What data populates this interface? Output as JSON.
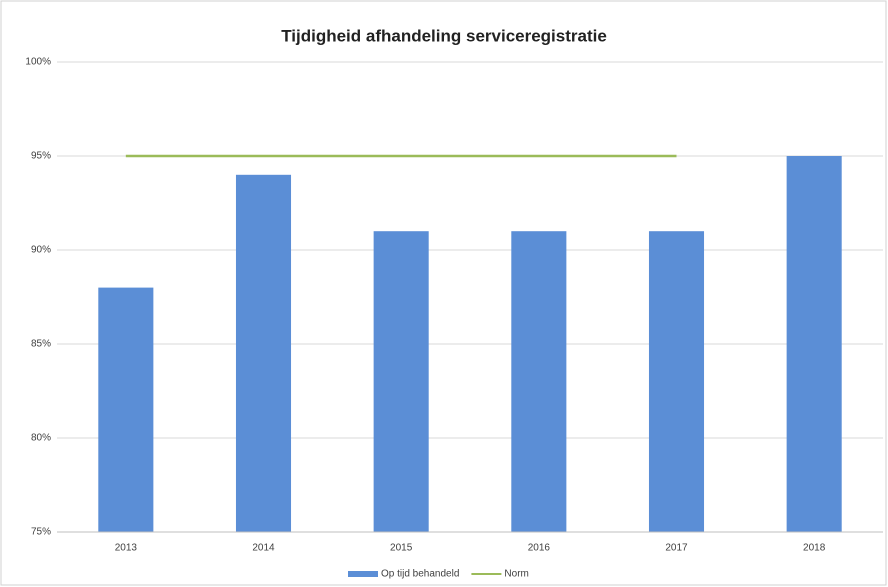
{
  "chart_data": {
    "type": "bar",
    "title": "Tijdigheid afhandeling serviceregistratie",
    "categories": [
      "2013",
      "2014",
      "2015",
      "2016",
      "2017",
      "2018"
    ],
    "series": [
      {
        "name": "Op tijd behandeld",
        "type": "bar",
        "color": "#5b8ed6",
        "values": [
          88,
          94,
          91,
          91,
          91,
          95
        ]
      },
      {
        "name": "Norm",
        "type": "line",
        "color": "#9bbb59",
        "values": [
          95,
          95,
          95,
          95,
          95,
          null
        ]
      }
    ],
    "ylim": [
      75,
      100
    ],
    "yticks": [
      {
        "value": 75,
        "label": "75%"
      },
      {
        "value": 80,
        "label": "80%"
      },
      {
        "value": 85,
        "label": "85%"
      },
      {
        "value": 90,
        "label": "90%"
      },
      {
        "value": 95,
        "label": "95%"
      },
      {
        "value": 100,
        "label": "100%"
      }
    ],
    "grid": true,
    "legend": "bottom"
  }
}
